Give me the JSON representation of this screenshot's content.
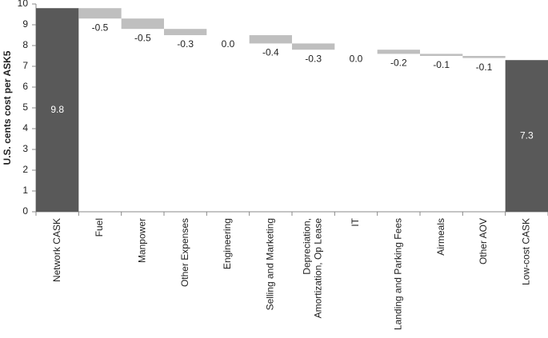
{
  "chart_data": {
    "type": "waterfall",
    "y_label": "U.S. cents cost per ASK5",
    "categories": [
      "Network CASK",
      "Fuel",
      "Manpower",
      "Other Expenses",
      "Engineering",
      "Selling and Marketing",
      "Depreciation, Amortization, Op Lease",
      "IT",
      "Landing and Parking Fees",
      "Airmeals",
      "Other AOV",
      "Low-cost CASK"
    ],
    "values": [
      9.8,
      -0.5,
      -0.5,
      -0.3,
      0.0,
      -0.4,
      -0.3,
      0.0,
      -0.2,
      -0.1,
      -0.1,
      7.3
    ],
    "value_labels": [
      "9.8",
      "-0.5",
      "-0.5",
      "-0.3",
      "0.0",
      "-0.4",
      "-0.3",
      "0.0",
      "-0.2",
      "-0.1",
      "-0.1",
      "7.3"
    ],
    "total_color": "#595959",
    "change_color": "#bfbfbf",
    "ylim": [
      0,
      10
    ],
    "yticks": [
      0,
      1,
      2,
      3,
      4,
      5,
      6,
      7,
      8,
      9,
      10
    ]
  }
}
